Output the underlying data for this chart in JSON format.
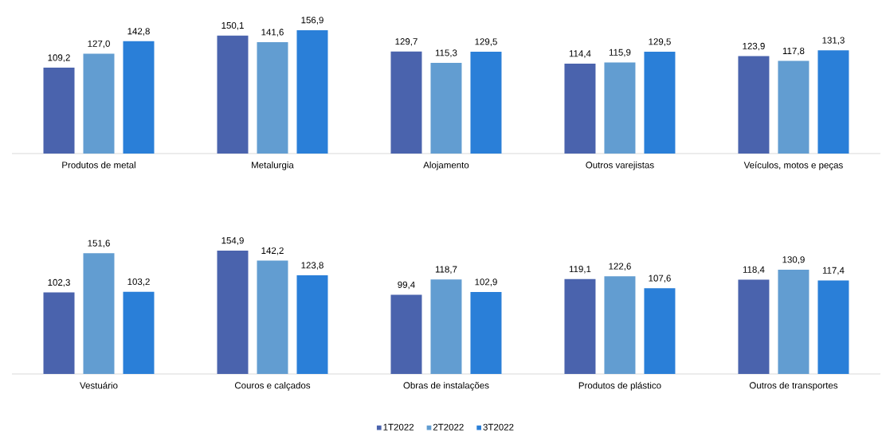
{
  "chart_data": [
    {
      "type": "bar",
      "categories": [
        "Produtos de metal",
        "Metalurgia",
        "Alojamento",
        "Outros varejistas",
        "Veículos, motos e peças"
      ],
      "series": [
        {
          "color": "#4a63ad",
          "values": [
            109.2,
            150.1,
            129.7,
            114.4,
            123.9
          ],
          "value_labels": [
            "109,2",
            "150,1",
            "129,7",
            "114,4",
            "123,9"
          ]
        },
        {
          "color": "#629dd1",
          "values": [
            127.0,
            141.6,
            115.3,
            115.9,
            117.8
          ],
          "value_labels": [
            "127,0",
            "141,6",
            "115,3",
            "115,9",
            "117,8"
          ]
        },
        {
          "color": "#2a7fd8",
          "values": [
            142.8,
            156.9,
            129.5,
            129.5,
            131.3
          ],
          "value_labels": [
            "142,8",
            "156,9",
            "129,5",
            "129,5",
            "131,3"
          ]
        }
      ],
      "tick_labels": "x"
    },
    {
      "type": "bar",
      "categories": [
        "Vestuário",
        "Couros e calçados",
        "Obras de instalações",
        "Produtos de plástico",
        "Outros de transportes"
      ],
      "series": [
        {
          "name": "1T2022",
          "color": "#4a63ad",
          "values": [
            102.3,
            154.9,
            99.4,
            119.1,
            118.4
          ],
          "value_labels": [
            "102,3",
            "154,9",
            "99,4",
            "119,1",
            "118,4"
          ]
        },
        {
          "name": "2T2022",
          "color": "#629dd1",
          "values": [
            151.6,
            142.2,
            118.7,
            122.6,
            130.9
          ],
          "value_labels": [
            "151,6",
            "142,2",
            "118,7",
            "122,6",
            "130,9"
          ]
        },
        {
          "name": "3T2022",
          "color": "#2a7fd8",
          "values": [
            103.2,
            123.8,
            102.9,
            107.6,
            117.4
          ],
          "value_labels": [
            "103,2",
            "123,8",
            "102,9",
            "107,6",
            "117,4"
          ]
        }
      ],
      "tick_labels": "x",
      "legend": "bottom"
    }
  ]
}
